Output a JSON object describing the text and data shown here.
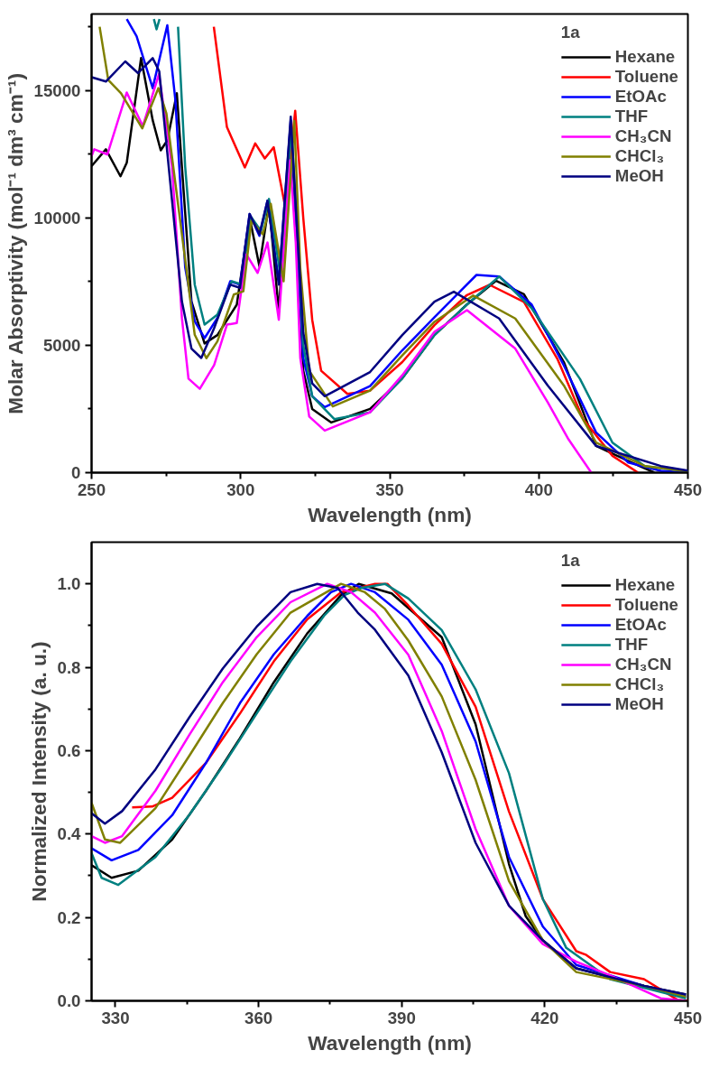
{
  "chart_data": [
    {
      "type": "line",
      "xlabel": "Wavelength (nm)",
      "ylabel": "Molar Absorptivity (mol⁻¹ dm³ cm⁻¹)",
      "legend_title": "1a",
      "legend": "top right",
      "grid": false,
      "xlim": [
        250,
        450
      ],
      "ylim": [
        0,
        18000
      ],
      "xticks": [
        250,
        {
          "value": 275,
          "label": null
        },
        300,
        {
          "value": 325,
          "label": null
        },
        350,
        {
          "value": 375,
          "label": null
        },
        400,
        {
          "value": 425,
          "label": null
        },
        450
      ],
      "yticks": [
        0,
        {
          "value": 2500,
          "label": null
        },
        5000,
        {
          "value": 7500,
          "label": null
        },
        10000,
        {
          "value": 12500,
          "label": null
        },
        15000,
        {
          "value": 17500,
          "label": null
        }
      ],
      "series": [
        {
          "name": "Hexane",
          "color": "#000000",
          "x": [
            250,
            254.8,
            259.7,
            261.8,
            266.6,
            270.5,
            273.2,
            275.4,
            278.6,
            280.3,
            283.5,
            287.9,
            292.2,
            298.7,
            303,
            306.3,
            309.5,
            312.8,
            316.8,
            319,
            321,
            324,
            330.4,
            343.4,
            354.2,
            365,
            375.9,
            385.6,
            395,
            408.4,
            414.9,
            419.2,
            430,
            438.8
          ],
          "values": [
            12030,
            12690,
            11630,
            12160,
            16270,
            13830,
            12650,
            13040,
            14890,
            12000,
            6720,
            5070,
            5400,
            6590,
            10020,
            8100,
            10550,
            6330,
            13570,
            9000,
            4000,
            2500,
            1970,
            2500,
            3700,
            5400,
            6600,
            7530,
            7000,
            4340,
            2370,
            1050,
            460,
            0
          ]
        },
        {
          "name": "Toluene",
          "color": "#ff0000",
          "x": [
            291,
            295.4,
            301.4,
            304.9,
            308.1,
            311.1,
            315,
            318.3,
            321,
            324,
            327,
            335.8,
            343.4,
            354.2,
            365,
            375.9,
            383.5,
            395,
            406.2,
            414.9,
            424.7,
            433.3
          ],
          "values": [
            17500,
            13560,
            11980,
            12920,
            12330,
            12770,
            10400,
            14200,
            10000,
            6000,
            4000,
            3090,
            3220,
            4340,
            5790,
            6970,
            7370,
            6700,
            4470,
            2100,
            660,
            0
          ]
        },
        {
          "name": "EtOAc",
          "color": "#0000ff",
          "x": [
            261.8,
            265.1,
            270.5,
            275.4,
            278.1,
            281.4,
            284.6,
            287.9,
            292.2,
            296.5,
            299.8,
            303,
            306.3,
            309,
            312.8,
            316.8,
            319,
            321,
            324,
            328.2,
            343.4,
            354.2,
            365,
            379.1,
            386.7,
            397.6,
            408.4,
            419.2,
            430,
            440.9,
            450
          ],
          "values": [
            17800,
            17130,
            15090,
            17560,
            14630,
            8050,
            5940,
            5280,
            6070,
            7510,
            7380,
            10150,
            9290,
            10670,
            7510,
            13830,
            9000,
            4500,
            3000,
            2570,
            3400,
            4800,
            6100,
            7760,
            7700,
            6600,
            4210,
            1580,
            400,
            70,
            0
          ]
        },
        {
          "name": "THF",
          "color": "#008080",
          "x": [
            270.9,
            271.8,
            272.8,
            276,
            279,
            281.4,
            284.6,
            287.9,
            292.2,
            297,
            300,
            303.6,
            306.8,
            309.5,
            313.3,
            317,
            319,
            321,
            324,
            331.4,
            343.4,
            354.2,
            365,
            375.9,
            386.7,
            397.6,
            413.8,
            424.7,
            435.5,
            450
          ],
          "values": [
            17800,
            17400,
            17800,
            null,
            17500,
            12000,
            7380,
            5810,
            6200,
            7510,
            7400,
            10020,
            9490,
            10740,
            7770,
            13500,
            9500,
            5000,
            3000,
            2100,
            2370,
            3700,
            5400,
            6600,
            7700,
            6450,
            3680,
            1180,
            260,
            50
          ]
        },
        {
          "name": "CH₃CN",
          "color": "#ff00ff",
          "x": [
            250,
            250.9,
            255.3,
            261.8,
            267.2,
            272.6,
            277,
            280.3,
            282.5,
            286.3,
            291.1,
            295.4,
            298.7,
            301.9,
            305.7,
            309,
            312.8,
            316.6,
            318.5,
            320,
            323,
            328.2,
            343.4,
            354.2,
            365,
            375.9,
            392.1,
            403,
            410,
            417.6
          ],
          "values": [
            12430,
            12690,
            12490,
            14920,
            13600,
            15640,
            12000,
            6070,
            3690,
            3290,
            4220,
            5810,
            5870,
            8570,
            7840,
            9030,
            6000,
            12260,
            9000,
            4500,
            2200,
            1650,
            2370,
            3820,
            5530,
            6380,
            4870,
            2760,
            1300,
            0
          ]
        },
        {
          "name": "CHCl₃",
          "color": "#808000",
          "x": [
            252.7,
            255.6,
            259.9,
            267,
            272.4,
            275.1,
            280.3,
            284.6,
            288.5,
            292.2,
            297.7,
            300.9,
            303.6,
            307.4,
            310.1,
            314.4,
            318,
            320,
            323,
            330.9,
            343.4,
            354.2,
            365,
            378,
            392.1,
            408.4,
            419.2,
            435.5,
            450
          ],
          "values": [
            17500,
            15410,
            14890,
            13510,
            15090,
            14100,
            9360,
            5410,
            4490,
            5150,
            6990,
            7120,
            9890,
            9360,
            10550,
            7510,
            13800,
            8000,
            4000,
            2600,
            3220,
            4600,
            5920,
            6950,
            6050,
            3420,
            1180,
            260,
            50
          ]
        },
        {
          "name": "MeOH",
          "color": "#000080",
          "x": [
            250,
            254.8,
            261.3,
            265.6,
            270.5,
            272.7,
            277,
            280.3,
            283.5,
            286.8,
            291.1,
            296.5,
            299.8,
            303,
            306.3,
            309,
            312.8,
            316.8,
            318.7,
            321,
            324,
            328.2,
            343.4,
            354.2,
            365,
            371.5,
            386.7,
            403,
            419.2,
            440.9,
            450
          ],
          "values": [
            15520,
            15350,
            16140,
            15680,
            16270,
            15750,
            10670,
            6720,
            4870,
            4500,
            5670,
            7380,
            7250,
            10150,
            9360,
            10670,
            7380,
            13970,
            10000,
            5500,
            3500,
            3000,
            3950,
            5400,
            6710,
            7100,
            6050,
            3420,
            1050,
            260,
            80
          ]
        }
      ]
    },
    {
      "type": "line",
      "xlabel": "Wavelength (nm)",
      "ylabel": "Normalized Intensity (a. u.)",
      "legend_title": "1a",
      "legend": "top right",
      "grid": false,
      "xlim": [
        325,
        450
      ],
      "ylim": [
        0,
        1.1
      ],
      "xticks": [
        330,
        {
          "value": 345,
          "label": null
        },
        360,
        {
          "value": 375,
          "label": null
        },
        390,
        {
          "value": 405,
          "label": null
        },
        420,
        {
          "value": 435,
          "label": null
        },
        450
      ],
      "yticks": [
        {
          "value": 0,
          "label": "0.0"
        },
        {
          "value": 0.1,
          "label": null
        },
        0.2,
        {
          "value": 0.3,
          "label": null
        },
        0.4,
        {
          "value": 0.5,
          "label": null
        },
        0.6,
        {
          "value": 0.7,
          "label": null
        },
        0.8,
        {
          "value": 0.9,
          "label": null
        },
        {
          "value": 1,
          "label": "1.0"
        }
      ],
      "series": [
        {
          "name": "Hexane",
          "color": "#000000",
          "x": [
            325,
            329.2,
            334.8,
            341.9,
            349,
            356.1,
            363.2,
            370.2,
            377.3,
            381,
            387.9,
            398.4,
            405.5,
            412.5,
            416,
            419.6,
            426.6,
            440.8,
            449.6
          ],
          "values": [
            0.325,
            0.295,
            0.312,
            0.387,
            0.504,
            0.63,
            0.764,
            0.881,
            0.973,
            1.0,
            0.977,
            0.872,
            0.663,
            0.328,
            0.203,
            0.145,
            0.078,
            0.036,
            0.015
          ]
        },
        {
          "name": "Toluene",
          "color": "#ff0000",
          "x": [
            333.5,
            337.7,
            341.9,
            349,
            356.1,
            363.2,
            370.2,
            377.3,
            384.4,
            387,
            391.4,
            398.4,
            405.5,
            412.5,
            419.6,
            426.6,
            428.7,
            433.7,
            440.8,
            447.9,
            450
          ],
          "values": [
            0.464,
            0.466,
            0.487,
            0.571,
            0.689,
            0.814,
            0.915,
            0.98,
            1.0,
            1.0,
            0.948,
            0.856,
            0.705,
            0.454,
            0.244,
            0.119,
            0.11,
            0.069,
            0.052,
            0.002,
            0
          ]
        },
        {
          "name": "EtOAc",
          "color": "#0000ff",
          "x": [
            325,
            329.2,
            334.8,
            341.9,
            349,
            356.1,
            363.2,
            370.2,
            375.2,
            379.4,
            384.4,
            391.4,
            398.4,
            405.5,
            412.5,
            419.6,
            426.6,
            440.8,
            449.6
          ],
          "values": [
            0.366,
            0.337,
            0.362,
            0.445,
            0.571,
            0.714,
            0.831,
            0.923,
            0.98,
            1.0,
            0.98,
            0.914,
            0.806,
            0.622,
            0.345,
            0.178,
            0.086,
            0.036,
            0.01
          ]
        },
        {
          "name": "THF",
          "color": "#008080",
          "x": [
            325,
            327.1,
            330.6,
            338.4,
            345.5,
            352.5,
            359.6,
            366.7,
            373.7,
            378,
            381.5,
            386.5,
            391.4,
            398.4,
            405.5,
            412.5,
            419.6,
            424.5,
            433.7,
            449.6
          ],
          "values": [
            0.354,
            0.295,
            0.278,
            0.345,
            0.446,
            0.563,
            0.689,
            0.814,
            0.923,
            0.973,
            0.99,
            1.0,
            0.965,
            0.889,
            0.747,
            0.546,
            0.244,
            0.127,
            0.052,
            0.006
          ]
        },
        {
          "name": "CH₃CN",
          "color": "#ff00ff",
          "x": [
            325,
            327.8,
            331.4,
            338.4,
            345.5,
            352.5,
            359.6,
            366.7,
            374.4,
            379.4,
            384.4,
            391.4,
            398.4,
            405.5,
            412.5,
            419.6,
            426.6,
            433.7,
            444.3,
            449.6
          ],
          "values": [
            0.395,
            0.379,
            0.395,
            0.504,
            0.638,
            0.764,
            0.872,
            0.956,
            1.0,
            0.98,
            0.931,
            0.83,
            0.647,
            0.412,
            0.228,
            0.136,
            0.094,
            0.061,
            0.006,
            0
          ]
        },
        {
          "name": "CHCl₃",
          "color": "#808000",
          "x": [
            325,
            327.8,
            331,
            338.4,
            345.5,
            352.5,
            359.6,
            366.7,
            377.3,
            382.3,
            386.5,
            391.4,
            398.4,
            405.5,
            412.5,
            419.6,
            426.6,
            440.8,
            449.6
          ],
          "values": [
            0.475,
            0.387,
            0.379,
            0.462,
            0.588,
            0.714,
            0.831,
            0.931,
            1.0,
            0.98,
            0.94,
            0.864,
            0.73,
            0.53,
            0.287,
            0.145,
            0.069,
            0.036,
            0.01
          ]
        },
        {
          "name": "MeOH",
          "color": "#000080",
          "x": [
            325,
            327.8,
            331.4,
            338.4,
            345.5,
            352.5,
            359.6,
            366.7,
            372.3,
            376.6,
            380.8,
            384.4,
            391.4,
            398.4,
            405.5,
            412.5,
            419.6,
            426.6,
            440.8,
            449.6
          ],
          "values": [
            0.45,
            0.425,
            0.455,
            0.555,
            0.68,
            0.797,
            0.897,
            0.98,
            1.0,
            0.99,
            0.931,
            0.89,
            0.78,
            0.596,
            0.379,
            0.228,
            0.145,
            0.078,
            0.036,
            0.015
          ]
        }
      ]
    }
  ]
}
